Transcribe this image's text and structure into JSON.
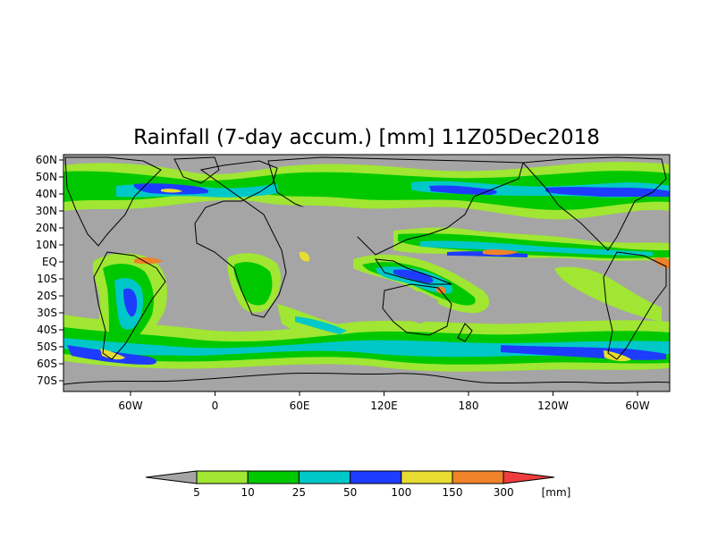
{
  "map": {
    "title": "Rainfall (7-day accum.) [mm] 11Z05Dec2018",
    "background_color": "#a5a5a5",
    "lat_labels": [
      "60N",
      "50N",
      "40N",
      "30N",
      "20N",
      "10N",
      "EQ",
      "10S",
      "20S",
      "30S",
      "40S",
      "50S",
      "60S",
      "70S"
    ],
    "lon_labels": [
      "60W",
      "0",
      "60E",
      "120E",
      "180",
      "120W",
      "60W"
    ]
  },
  "legend": {
    "unit": "[mm]",
    "thresholds": [
      "5",
      "10",
      "25",
      "50",
      "100",
      "150",
      "300"
    ],
    "colors": {
      "below": "#a5a5a5",
      "bins": [
        "#a0e632",
        "#00c800",
        "#00c8c8",
        "#1e3cff",
        "#e6dc32",
        "#f08228"
      ],
      "above": "#f03c3c"
    }
  }
}
